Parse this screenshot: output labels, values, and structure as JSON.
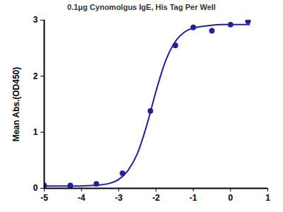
{
  "chart_data": {
    "type": "scatter",
    "title": "0.1μg Cynomolgus IgE, His Tag Per Well",
    "y_label": "Mean Abs.(OD450)",
    "xlim": [
      -5,
      1
    ],
    "xticks": [
      -5,
      -4,
      -3,
      -2,
      -1,
      0,
      1
    ],
    "ylim": [
      0,
      3
    ],
    "yticks": [
      0,
      1,
      2,
      3
    ],
    "grid": false,
    "series": [
      {
        "type": "scatter",
        "marker": "circle",
        "color": "#2020a0",
        "x": [
          -5.0,
          -4.3,
          -3.6,
          -2.9,
          -2.15,
          -1.48,
          -1.0,
          -0.5,
          0.0,
          0.47
        ],
        "values": [
          0.05,
          0.05,
          0.08,
          0.27,
          1.38,
          2.55,
          2.87,
          2.81,
          2.92,
          2.98
        ]
      },
      {
        "type": "line",
        "line_style": "solid",
        "color": "#2020a0",
        "x": [
          -5.0,
          -4.75,
          -4.5,
          -4.25,
          -4.0,
          -3.75,
          -3.5,
          -3.25,
          -3.0,
          -2.75,
          -2.5,
          -2.25,
          -2.0,
          -1.75,
          -1.5,
          -1.25,
          -1.0,
          -0.75,
          -0.5,
          -0.25,
          0.0,
          0.25,
          0.5
        ],
        "values": [
          0.04,
          0.04,
          0.04,
          0.04,
          0.04,
          0.05,
          0.06,
          0.09,
          0.16,
          0.32,
          0.62,
          1.12,
          1.73,
          2.26,
          2.6,
          2.78,
          2.86,
          2.89,
          2.91,
          2.92,
          2.92,
          2.92,
          2.92
        ]
      }
    ]
  }
}
